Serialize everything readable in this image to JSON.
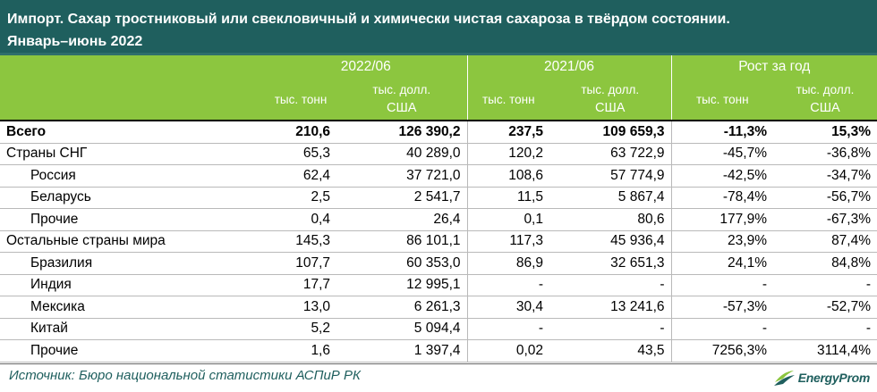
{
  "title": {
    "line1": "Импорт. Сахар тростниковый или свекловичный и химически чистая сахароза в твёрдом состоянии.",
    "line2": "Январь–июнь 2022"
  },
  "header": {
    "period1": "2022/06",
    "period2": "2021/06",
    "growth": "Рост за год",
    "unit_tons": "тыс. тонн",
    "unit_usd_line1": "тыс. долл.",
    "unit_usd_line2": "США"
  },
  "rows": [
    {
      "name": "Всего",
      "t22": "210,6",
      "u22": "126 390,2",
      "t21": "237,5",
      "u21": "109 659,3",
      "gt": "-11,3%",
      "gu": "15,3%"
    },
    {
      "name": "Страны СНГ",
      "t22": "65,3",
      "u22": "40 289,0",
      "t21": "120,2",
      "u21": "63 722,9",
      "gt": "-45,7%",
      "gu": "-36,8%"
    },
    {
      "name": "Россия",
      "t22": "62,4",
      "u22": "37 721,0",
      "t21": "108,6",
      "u21": "57 774,9",
      "gt": "-42,5%",
      "gu": "-34,7%"
    },
    {
      "name": "Беларусь",
      "t22": "2,5",
      "u22": "2 541,7",
      "t21": "11,5",
      "u21": "5 867,4",
      "gt": "-78,4%",
      "gu": "-56,7%"
    },
    {
      "name": "Прочие",
      "t22": "0,4",
      "u22": "26,4",
      "t21": "0,1",
      "u21": "80,6",
      "gt": "177,9%",
      "gu": "-67,3%"
    },
    {
      "name": "Остальные страны мира",
      "t22": "145,3",
      "u22": "86 101,1",
      "t21": "117,3",
      "u21": "45 936,4",
      "gt": "23,9%",
      "gu": "87,4%"
    },
    {
      "name": "Бразилия",
      "t22": "107,7",
      "u22": "60 353,0",
      "t21": "86,9",
      "u21": "32 651,3",
      "gt": "24,1%",
      "gu": "84,8%"
    },
    {
      "name": "Индия",
      "t22": "17,7",
      "u22": "12 995,1",
      "t21": "-",
      "u21": "-",
      "gt": "-",
      "gu": "-"
    },
    {
      "name": "Мексика",
      "t22": "13,0",
      "u22": "6 261,3",
      "t21": "30,4",
      "u21": "13 241,6",
      "gt": "-57,3%",
      "gu": "-52,7%"
    },
    {
      "name": "Китай",
      "t22": "5,2",
      "u22": "5 094,4",
      "t21": "-",
      "u21": "-",
      "gt": "-",
      "gu": "-"
    },
    {
      "name": "Прочие",
      "t22": "1,6",
      "u22": "1 397,4",
      "t21": "0,02",
      "u21": "43,5",
      "gt": "7256,3%",
      "gu": "3114,4%"
    }
  ],
  "footer": {
    "source": "Источник: Бюро национальной статистики АСПиР РК",
    "logo_text": "EnergyProm",
    "logo_icon": "energyprom-logo-icon"
  },
  "colors": {
    "title_bg": "#1f5f5e",
    "header_bg": "#8cc63f",
    "text_accent": "#1f5f5e"
  }
}
